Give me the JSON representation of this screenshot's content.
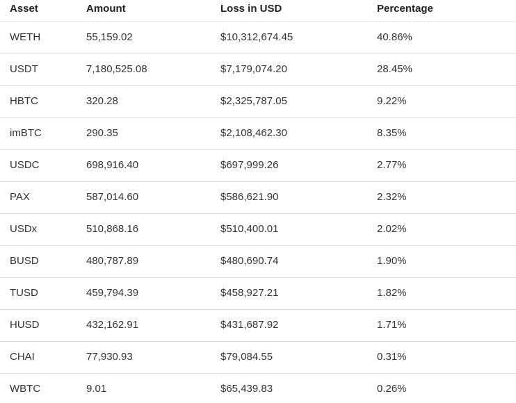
{
  "table": {
    "columns": [
      "Asset",
      "Amount",
      "Loss in USD",
      "Percentage"
    ],
    "rows": [
      {
        "asset": "WETH",
        "amount": "55,159.02",
        "loss_usd": "$10,312,674.45",
        "percentage": "40.86%"
      },
      {
        "asset": "USDT",
        "amount": "7,180,525.08",
        "loss_usd": "$7,179,074.20",
        "percentage": "28.45%"
      },
      {
        "asset": "HBTC",
        "amount": "320.28",
        "loss_usd": "$2,325,787.05",
        "percentage": "9.22%"
      },
      {
        "asset": "imBTC",
        "amount": "290.35",
        "loss_usd": "$2,108,462.30",
        "percentage": "8.35%"
      },
      {
        "asset": "USDC",
        "amount": "698,916.40",
        "loss_usd": "$697,999.26",
        "percentage": "2.77%"
      },
      {
        "asset": "PAX",
        "amount": "587,014.60",
        "loss_usd": "$586,621.90",
        "percentage": "2.32%"
      },
      {
        "asset": "USDx",
        "amount": "510,868.16",
        "loss_usd": "$510,400.01",
        "percentage": "2.02%"
      },
      {
        "asset": "BUSD",
        "amount": "480,787.89",
        "loss_usd": "$480,690.74",
        "percentage": "1.90%"
      },
      {
        "asset": "TUSD",
        "amount": "459,794.39",
        "loss_usd": "$458,927.21",
        "percentage": "1.82%"
      },
      {
        "asset": "HUSD",
        "amount": "432,162.91",
        "loss_usd": "$431,687.92",
        "percentage": "1.71%"
      },
      {
        "asset": "CHAI",
        "amount": "77,930.93",
        "loss_usd": "$79,084.55",
        "percentage": "0.31%"
      },
      {
        "asset": "WBTC",
        "amount": "9.01",
        "loss_usd": "$65,439.83",
        "percentage": "0.26%"
      }
    ]
  },
  "colors": {
    "text": "#333333",
    "header_text": "#222222",
    "border": "#dddddd",
    "background": "#ffffff"
  }
}
